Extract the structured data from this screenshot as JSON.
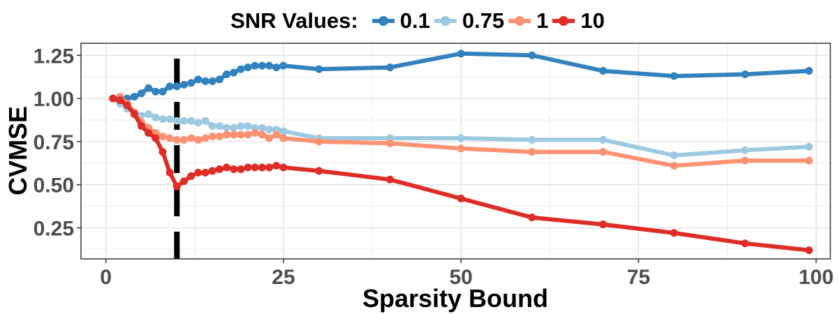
{
  "chart_data": {
    "type": "line",
    "xlabel": "Sparsity Bound",
    "ylabel": "CVMSE",
    "xlim": [
      -3.5,
      102
    ],
    "ylim": [
      0.07,
      1.32
    ],
    "xticks": [
      0,
      25,
      50,
      75,
      100
    ],
    "yticks": [
      0.25,
      0.5,
      0.75,
      1.0
    ],
    "ytick_labels": [
      "0.25",
      "0.50",
      "0.75",
      "1.00",
      "1.25"
    ],
    "yticks_all": [
      0.25,
      0.5,
      0.75,
      1.0,
      1.25
    ],
    "grid": true,
    "legend": {
      "title": "SNR Values:",
      "placement": "top"
    },
    "vline": {
      "x": 10,
      "style": "dashed",
      "color": "#000000"
    },
    "series": [
      {
        "name": "0.1",
        "color": "#3182bd",
        "x": [
          1,
          2,
          3,
          4,
          5,
          6,
          7,
          8,
          9,
          10,
          11,
          12,
          13,
          14,
          15,
          16,
          17,
          18,
          19,
          20,
          21,
          22,
          23,
          24,
          25,
          30,
          40,
          50,
          60,
          70,
          80,
          90,
          99
        ],
        "values": [
          1.0,
          1.0,
          1.0,
          1.01,
          1.03,
          1.06,
          1.04,
          1.04,
          1.07,
          1.07,
          1.08,
          1.09,
          1.11,
          1.1,
          1.1,
          1.11,
          1.14,
          1.15,
          1.17,
          1.18,
          1.19,
          1.19,
          1.19,
          1.18,
          1.19,
          1.17,
          1.18,
          1.26,
          1.25,
          1.16,
          1.13,
          1.14,
          1.16
        ]
      },
      {
        "name": "0.75",
        "color": "#9ecae1",
        "x": [
          1,
          2,
          3,
          4,
          5,
          6,
          7,
          8,
          9,
          10,
          11,
          12,
          13,
          14,
          15,
          16,
          17,
          18,
          19,
          20,
          21,
          22,
          23,
          24,
          25,
          30,
          40,
          50,
          60,
          70,
          80,
          90,
          99
        ],
        "values": [
          1.0,
          0.97,
          0.94,
          0.92,
          0.9,
          0.91,
          0.89,
          0.88,
          0.88,
          0.87,
          0.87,
          0.87,
          0.86,
          0.87,
          0.84,
          0.84,
          0.83,
          0.83,
          0.84,
          0.84,
          0.83,
          0.83,
          0.82,
          0.82,
          0.81,
          0.77,
          0.77,
          0.77,
          0.76,
          0.76,
          0.67,
          0.7,
          0.72
        ]
      },
      {
        "name": "1",
        "color": "#fc9272",
        "x": [
          1,
          2,
          3,
          4,
          5,
          6,
          7,
          8,
          9,
          10,
          11,
          12,
          13,
          14,
          15,
          16,
          17,
          18,
          19,
          20,
          21,
          22,
          23,
          24,
          25,
          30,
          40,
          50,
          60,
          70,
          80,
          90,
          99
        ],
        "values": [
          1.0,
          1.01,
          0.97,
          0.92,
          0.86,
          0.83,
          0.8,
          0.78,
          0.77,
          0.76,
          0.76,
          0.77,
          0.76,
          0.77,
          0.78,
          0.78,
          0.79,
          0.79,
          0.79,
          0.79,
          0.8,
          0.79,
          0.77,
          0.79,
          0.77,
          0.75,
          0.74,
          0.71,
          0.69,
          0.69,
          0.61,
          0.64,
          0.64
        ]
      },
      {
        "name": "10",
        "color": "#de2d26",
        "x": [
          1,
          2,
          3,
          4,
          5,
          6,
          7,
          8,
          9,
          10,
          11,
          12,
          13,
          14,
          15,
          16,
          17,
          18,
          19,
          20,
          21,
          22,
          23,
          24,
          25,
          30,
          40,
          50,
          60,
          70,
          80,
          90,
          99
        ],
        "values": [
          1.0,
          0.99,
          0.96,
          0.91,
          0.84,
          0.8,
          0.77,
          0.69,
          0.57,
          0.49,
          0.52,
          0.55,
          0.57,
          0.57,
          0.58,
          0.59,
          0.6,
          0.59,
          0.59,
          0.6,
          0.6,
          0.6,
          0.6,
          0.61,
          0.6,
          0.58,
          0.53,
          0.42,
          0.31,
          0.27,
          0.22,
          0.16,
          0.12
        ]
      }
    ]
  }
}
